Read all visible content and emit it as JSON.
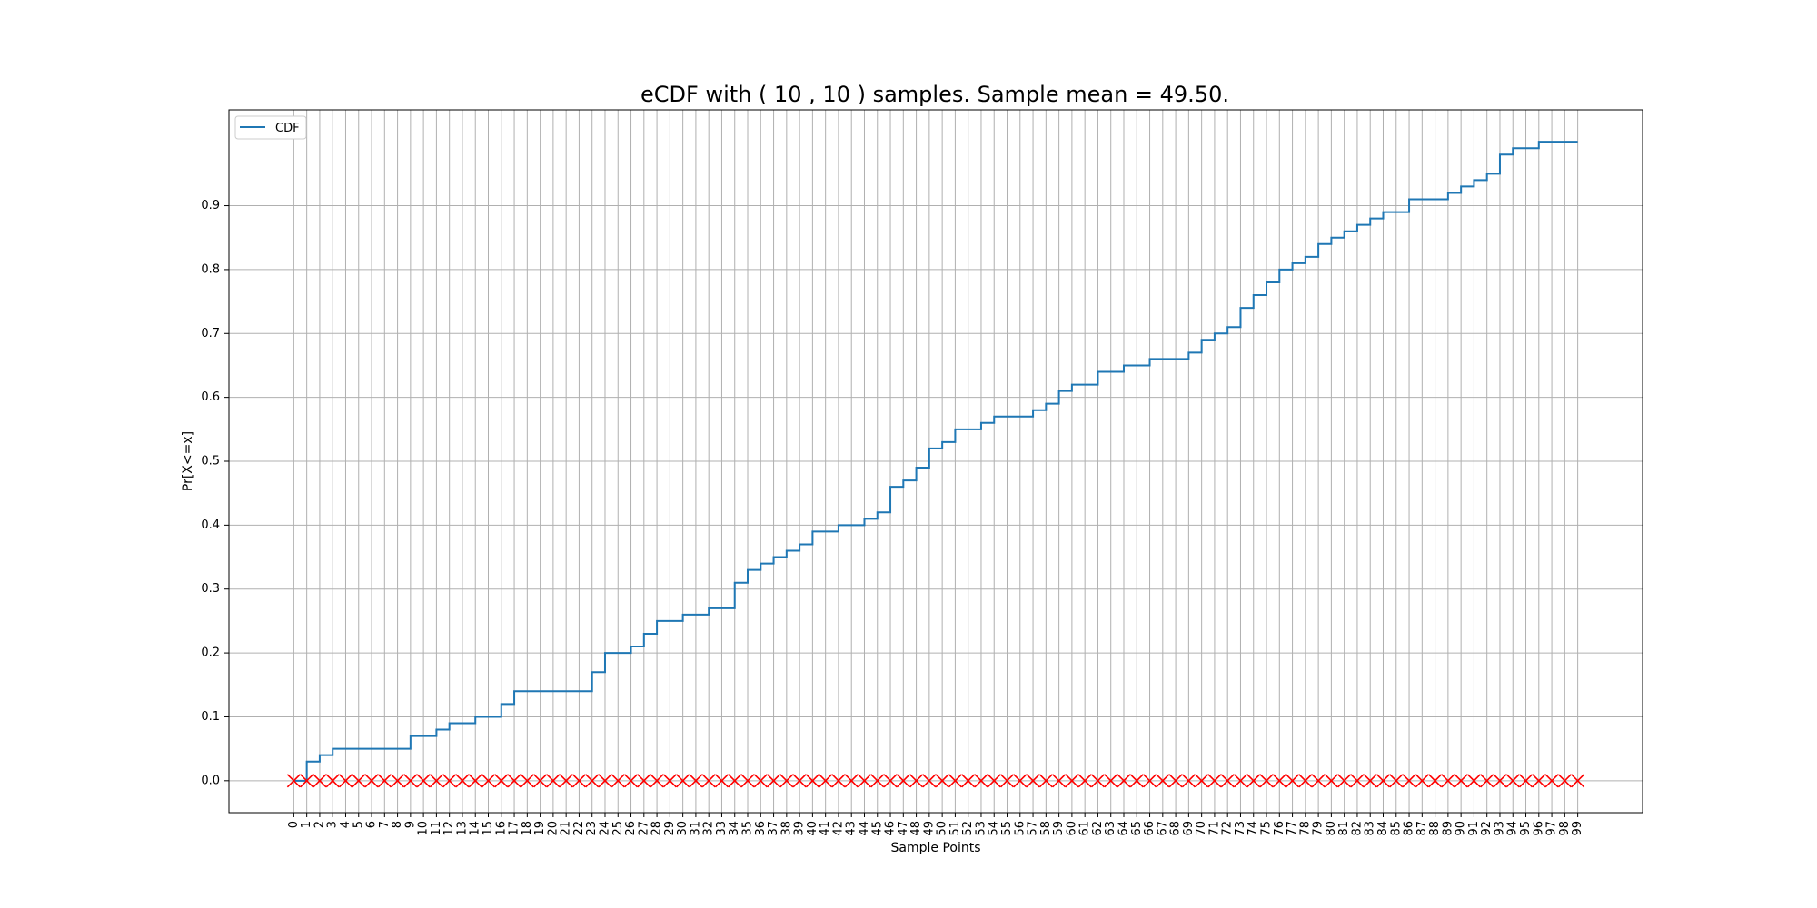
{
  "chart_data": {
    "type": "line",
    "title": "eCDF with ( 10 , 10 ) samples. Sample mean = 49.50.",
    "xlabel": "Sample Points",
    "ylabel": "Pr[X<=x]",
    "legend": {
      "entries": [
        "CDF"
      ],
      "placement": "top-left"
    },
    "grid": true,
    "xlim": [
      -5,
      104
    ],
    "ylim": [
      -0.05,
      1.05
    ],
    "x_ticks": [
      0,
      1,
      2,
      3,
      4,
      5,
      6,
      7,
      8,
      9,
      10,
      11,
      12,
      13,
      14,
      15,
      16,
      17,
      18,
      19,
      20,
      21,
      22,
      23,
      24,
      25,
      26,
      27,
      28,
      29,
      30,
      31,
      32,
      33,
      34,
      35,
      36,
      37,
      38,
      39,
      40,
      41,
      42,
      43,
      44,
      45,
      46,
      47,
      48,
      49,
      50,
      51,
      52,
      53,
      54,
      55,
      56,
      57,
      58,
      59,
      60,
      61,
      62,
      63,
      64,
      65,
      66,
      67,
      68,
      69,
      70,
      71,
      72,
      73,
      74,
      75,
      76,
      77,
      78,
      79,
      80,
      81,
      82,
      83,
      84,
      85,
      86,
      87,
      88,
      89,
      90,
      91,
      92,
      93,
      94,
      95,
      96,
      97,
      98,
      99
    ],
    "y_ticks": [
      0.0,
      0.1,
      0.2,
      0.3,
      0.4,
      0.5,
      0.6,
      0.7,
      0.8,
      0.9
    ],
    "y_tick_labels": [
      "0.0",
      "0.1",
      "0.2",
      "0.3",
      "0.4",
      "0.5",
      "0.6",
      "0.7",
      "0.8",
      "0.9"
    ],
    "series": [
      {
        "name": "CDF",
        "color": "#1f77b4",
        "step": "post",
        "x": [
          0,
          1,
          2,
          3,
          4,
          5,
          6,
          7,
          8,
          9,
          10,
          11,
          12,
          13,
          14,
          15,
          16,
          17,
          18,
          19,
          20,
          21,
          22,
          23,
          24,
          25,
          26,
          27,
          28,
          29,
          30,
          31,
          32,
          33,
          34,
          35,
          36,
          37,
          38,
          39,
          40,
          41,
          42,
          43,
          44,
          45,
          46,
          47,
          48,
          49,
          50,
          51,
          52,
          53,
          54,
          55,
          56,
          57,
          58,
          59,
          60,
          61,
          62,
          63,
          64,
          65,
          66,
          67,
          68,
          69,
          70,
          71,
          72,
          73,
          74,
          75,
          76,
          77,
          78,
          79,
          80,
          81,
          82,
          83,
          84,
          85,
          86,
          87,
          88,
          89,
          90,
          91,
          92,
          93,
          94,
          95,
          96,
          97,
          98,
          99
        ],
        "y": [
          0.0,
          0.03,
          0.04,
          0.05,
          0.05,
          0.05,
          0.05,
          0.05,
          0.05,
          0.07,
          0.07,
          0.08,
          0.09,
          0.09,
          0.1,
          0.1,
          0.12,
          0.14,
          0.14,
          0.14,
          0.14,
          0.14,
          0.14,
          0.17,
          0.2,
          0.2,
          0.21,
          0.23,
          0.25,
          0.25,
          0.26,
          0.26,
          0.27,
          0.27,
          0.31,
          0.33,
          0.34,
          0.35,
          0.36,
          0.37,
          0.39,
          0.39,
          0.4,
          0.4,
          0.41,
          0.42,
          0.46,
          0.47,
          0.49,
          0.52,
          0.53,
          0.55,
          0.55,
          0.56,
          0.57,
          0.57,
          0.57,
          0.58,
          0.59,
          0.61,
          0.62,
          0.62,
          0.64,
          0.64,
          0.65,
          0.65,
          0.66,
          0.66,
          0.66,
          0.67,
          0.69,
          0.7,
          0.71,
          0.74,
          0.76,
          0.78,
          0.8,
          0.81,
          0.82,
          0.84,
          0.85,
          0.86,
          0.87,
          0.88,
          0.89,
          0.89,
          0.91,
          0.91,
          0.91,
          0.92,
          0.93,
          0.94,
          0.95,
          0.98,
          0.99,
          0.99,
          1.0,
          1.0,
          1.0,
          1.0
        ]
      },
      {
        "marker": "x",
        "color": "#ff0000",
        "x": [
          0,
          1,
          2,
          3,
          4,
          5,
          6,
          7,
          8,
          9,
          10,
          11,
          12,
          13,
          14,
          15,
          16,
          17,
          18,
          19,
          20,
          21,
          22,
          23,
          24,
          25,
          26,
          27,
          28,
          29,
          30,
          31,
          32,
          33,
          34,
          35,
          36,
          37,
          38,
          39,
          40,
          41,
          42,
          43,
          44,
          45,
          46,
          47,
          48,
          49,
          50,
          51,
          52,
          53,
          54,
          55,
          56,
          57,
          58,
          59,
          60,
          61,
          62,
          63,
          64,
          65,
          66,
          67,
          68,
          69,
          70,
          71,
          72,
          73,
          74,
          75,
          76,
          77,
          78,
          79,
          80,
          81,
          82,
          83,
          84,
          85,
          86,
          87,
          88,
          89,
          90,
          91,
          92,
          93,
          94,
          95,
          96,
          97,
          98,
          99
        ],
        "y": [
          0,
          0,
          0,
          0,
          0,
          0,
          0,
          0,
          0,
          0,
          0,
          0,
          0,
          0,
          0,
          0,
          0,
          0,
          0,
          0,
          0,
          0,
          0,
          0,
          0,
          0,
          0,
          0,
          0,
          0,
          0,
          0,
          0,
          0,
          0,
          0,
          0,
          0,
          0,
          0,
          0,
          0,
          0,
          0,
          0,
          0,
          0,
          0,
          0,
          0,
          0,
          0,
          0,
          0,
          0,
          0,
          0,
          0,
          0,
          0,
          0,
          0,
          0,
          0,
          0,
          0,
          0,
          0,
          0,
          0,
          0,
          0,
          0,
          0,
          0,
          0,
          0,
          0,
          0,
          0,
          0,
          0,
          0,
          0,
          0,
          0,
          0,
          0,
          0,
          0,
          0,
          0,
          0,
          0,
          0,
          0,
          0,
          0,
          0,
          0
        ]
      }
    ]
  }
}
